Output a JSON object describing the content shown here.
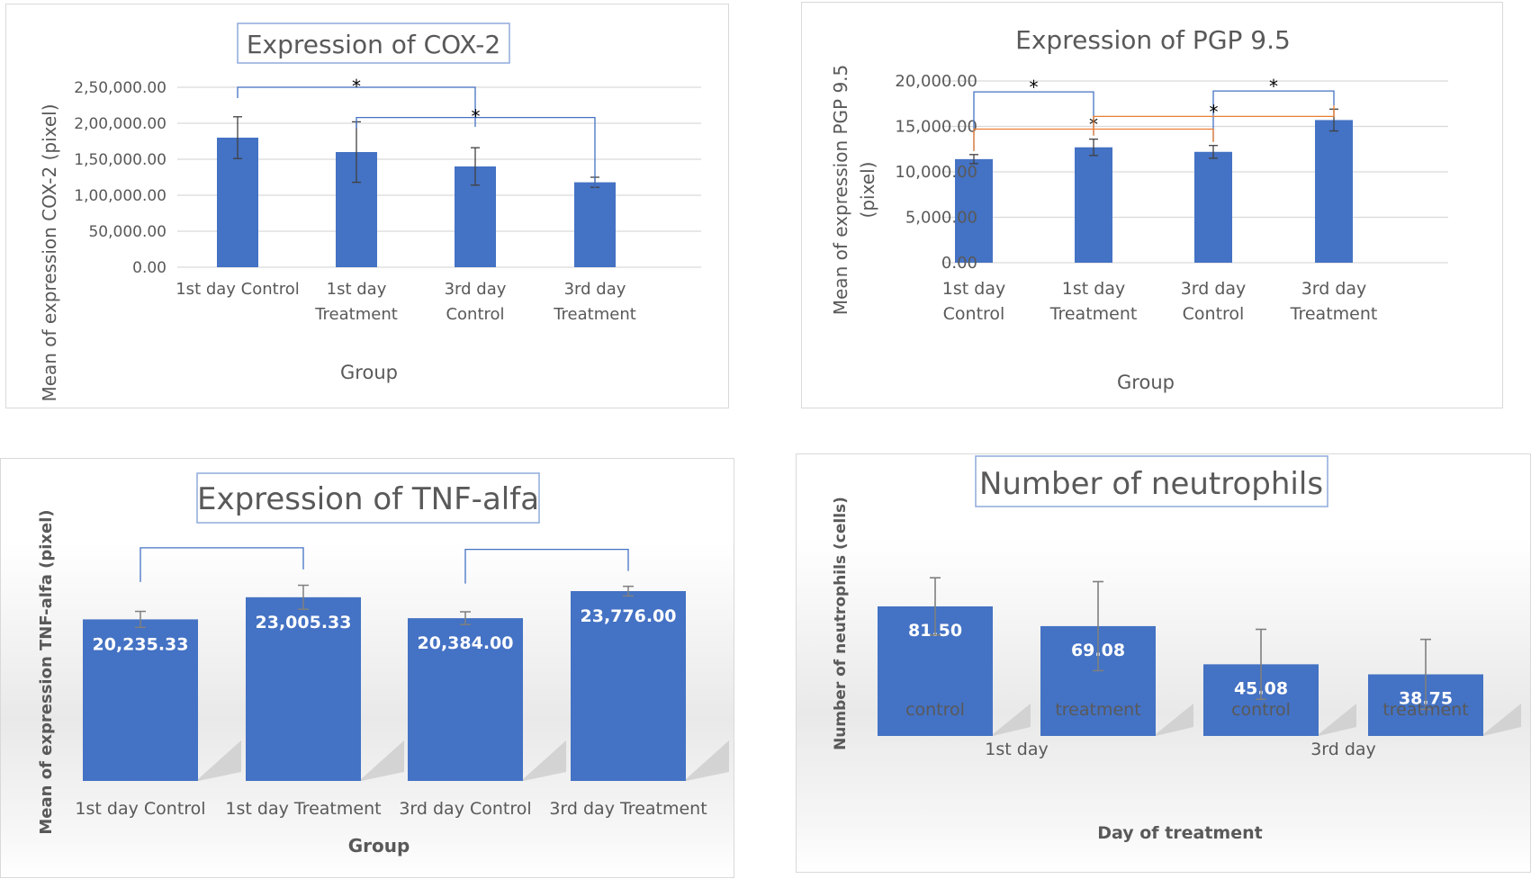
{
  "chart_data": [
    {
      "id": "cox",
      "type": "bar",
      "title": "Expression of COX-2",
      "xlabel": "Group",
      "ylabel": "Mean of expression COX-2 (pixel)",
      "categories": [
        [
          "1st day Control"
        ],
        [
          "1st day",
          "Treatment"
        ],
        [
          "3rd day",
          "Control"
        ],
        [
          "3rd day",
          "Treatment"
        ]
      ],
      "values": [
        180000,
        160000,
        140000,
        118000
      ],
      "errors": [
        29000,
        42000,
        26000,
        7000
      ],
      "ylim": [
        0,
        250000
      ],
      "ticks": [
        0,
        50000,
        100000,
        150000,
        200000,
        250000
      ],
      "tick_labels": [
        "0.00",
        "50,000.00",
        "1,00,000.00",
        "1,50,000.00",
        "2,00,000.00",
        "2,50,000.00"
      ],
      "grid": true,
      "significance": [
        {
          "from": 0,
          "to": 2,
          "level": 250000,
          "label": "*"
        },
        {
          "from": 1,
          "to": 3,
          "level": 208000,
          "label": "*"
        }
      ]
    },
    {
      "id": "pgp",
      "type": "bar",
      "title": "Expression of PGP 9.5",
      "xlabel": "Group",
      "ylabel": [
        "Mean of expression PGP 9.5",
        "(pixel)"
      ],
      "categories": [
        [
          "1st day",
          "Control"
        ],
        [
          "1st day",
          "Treatment"
        ],
        [
          "3rd day",
          "Control"
        ],
        [
          "3rd day",
          "Treatment"
        ]
      ],
      "values": [
        11400,
        12700,
        12200,
        15700
      ],
      "errors": [
        500,
        900,
        700,
        1200
      ],
      "ylim": [
        0,
        20000
      ],
      "ticks": [
        0,
        5000,
        10000,
        15000,
        20000
      ],
      "tick_labels": [
        "0.00",
        "5,000.00",
        "10,000.00",
        "15,000.00",
        "20,000.00"
      ],
      "grid": true,
      "significance": [
        {
          "from": 0,
          "to": 1,
          "level": 18800,
          "label": "*"
        },
        {
          "from": 2,
          "to": 3,
          "level": 18900,
          "label": "*"
        },
        {
          "from": 0,
          "to": 2,
          "level": 14700,
          "label": "*"
        },
        {
          "from": 1,
          "to": 3,
          "level": 16100,
          "label": "*"
        }
      ],
      "colors": {
        "bar": "#4472c4",
        "bracket_a": "#4472c4",
        "bracket_b": "#ed7d31"
      }
    },
    {
      "id": "tnf",
      "type": "bar",
      "title": "Expression of TNF-alfa",
      "xlabel": "Group",
      "ylabel": "Mean of expression TNF-alfa (pixel)",
      "categories": [
        "1st day Control",
        "1st day Treatment",
        "3rd day Control",
        "3rd day Treatment"
      ],
      "values": [
        20235.33,
        23005.33,
        20384.0,
        23776.0
      ],
      "value_labels": [
        "20,235.33",
        "23,005.33",
        "20,384.00",
        "23,776.00"
      ],
      "errors": [
        1000,
        1500,
        800,
        600
      ],
      "ylim": [
        0,
        30000
      ],
      "grid": false,
      "brackets": [
        {
          "from": 0,
          "to": 1,
          "level": 29200
        },
        {
          "from": 2,
          "to": 3,
          "level": 29000
        }
      ]
    },
    {
      "id": "neu",
      "type": "bar",
      "title": "Number of neutrophils",
      "xlabel": "Day of treatment",
      "ylabel": "Number of neutrophils (cells)",
      "categories": [
        "control",
        "treatment",
        "control",
        "treatment"
      ],
      "groups": [
        {
          "label": "1st day",
          "members": [
            0,
            1
          ]
        },
        {
          "label": "3rd day",
          "members": [
            2,
            3
          ]
        }
      ],
      "values": [
        81.5,
        69.08,
        45.08,
        38.75
      ],
      "value_labels": [
        "81.50",
        "69.08",
        "45.08",
        "38.75"
      ],
      "errors": [
        18,
        28,
        22,
        22
      ],
      "ylim": [
        0,
        112
      ],
      "grid": false
    }
  ]
}
